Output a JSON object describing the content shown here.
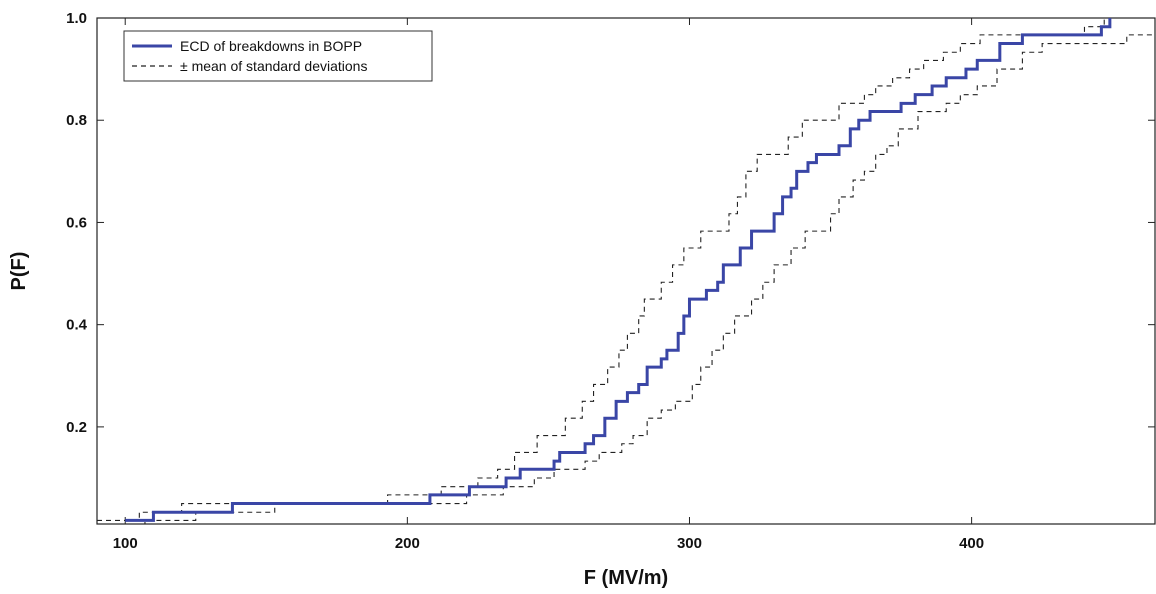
{
  "chart_data": {
    "type": "line",
    "xlabel": "F (MV/m)",
    "ylabel": "P(F)",
    "xlim": [
      90,
      465
    ],
    "ylim": [
      0.01,
      1.0
    ],
    "x_ticks": [
      100,
      200,
      300,
      400
    ],
    "y_ticks": [
      0.2,
      0.4,
      0.6,
      0.8,
      1.0
    ],
    "x_tick_labels": [
      "100",
      "200",
      "300",
      "400"
    ],
    "y_tick_labels": [
      "0.2",
      "0.4",
      "0.6",
      "0.8",
      "1.0"
    ],
    "grid": false,
    "legend_position": "top-left",
    "series": [
      {
        "name": "ECD of breakdowns in BOPP",
        "color": "#3a46a6",
        "style": "solid",
        "step": [
          [
            100,
            0.017
          ],
          [
            110,
            0.017
          ],
          [
            110,
            0.033
          ],
          [
            138,
            0.033
          ],
          [
            138,
            0.05
          ],
          [
            208,
            0.05
          ],
          [
            208,
            0.067
          ],
          [
            222,
            0.067
          ],
          [
            222,
            0.083
          ],
          [
            235,
            0.083
          ],
          [
            235,
            0.1
          ],
          [
            240,
            0.1
          ],
          [
            240,
            0.117
          ],
          [
            252,
            0.117
          ],
          [
            252,
            0.133
          ],
          [
            254,
            0.133
          ],
          [
            254,
            0.15
          ],
          [
            263,
            0.15
          ],
          [
            263,
            0.167
          ],
          [
            266,
            0.167
          ],
          [
            266,
            0.183
          ],
          [
            270,
            0.183
          ],
          [
            270,
            0.217
          ],
          [
            274,
            0.217
          ],
          [
            274,
            0.25
          ],
          [
            278,
            0.25
          ],
          [
            278,
            0.267
          ],
          [
            282,
            0.267
          ],
          [
            282,
            0.283
          ],
          [
            285,
            0.283
          ],
          [
            285,
            0.317
          ],
          [
            290,
            0.317
          ],
          [
            290,
            0.333
          ],
          [
            292,
            0.333
          ],
          [
            292,
            0.35
          ],
          [
            296,
            0.35
          ],
          [
            296,
            0.383
          ],
          [
            298,
            0.383
          ],
          [
            298,
            0.417
          ],
          [
            300,
            0.417
          ],
          [
            300,
            0.45
          ],
          [
            306,
            0.45
          ],
          [
            306,
            0.467
          ],
          [
            310,
            0.467
          ],
          [
            310,
            0.483
          ],
          [
            312,
            0.483
          ],
          [
            312,
            0.517
          ],
          [
            318,
            0.517
          ],
          [
            318,
            0.55
          ],
          [
            322,
            0.55
          ],
          [
            322,
            0.583
          ],
          [
            330,
            0.583
          ],
          [
            330,
            0.617
          ],
          [
            333,
            0.617
          ],
          [
            333,
            0.65
          ],
          [
            336,
            0.65
          ],
          [
            336,
            0.667
          ],
          [
            338,
            0.667
          ],
          [
            338,
            0.7
          ],
          [
            342,
            0.7
          ],
          [
            342,
            0.717
          ],
          [
            345,
            0.717
          ],
          [
            345,
            0.733
          ],
          [
            353,
            0.733
          ],
          [
            353,
            0.75
          ],
          [
            357,
            0.75
          ],
          [
            357,
            0.783
          ],
          [
            360,
            0.783
          ],
          [
            360,
            0.8
          ],
          [
            364,
            0.8
          ],
          [
            364,
            0.817
          ],
          [
            375,
            0.817
          ],
          [
            375,
            0.833
          ],
          [
            380,
            0.833
          ],
          [
            380,
            0.85
          ],
          [
            386,
            0.85
          ],
          [
            386,
            0.867
          ],
          [
            391,
            0.867
          ],
          [
            391,
            0.883
          ],
          [
            398,
            0.883
          ],
          [
            398,
            0.9
          ],
          [
            402,
            0.9
          ],
          [
            402,
            0.917
          ],
          [
            410,
            0.917
          ],
          [
            410,
            0.95
          ],
          [
            418,
            0.95
          ],
          [
            418,
            0.967
          ],
          [
            446,
            0.967
          ],
          [
            446,
            0.983
          ],
          [
            449,
            0.983
          ],
          [
            449,
            1.0
          ]
        ]
      },
      {
        "name": "± mean of standard deviations",
        "color": "#222222",
        "style": "dashed",
        "step": [
          [
            90,
            0.017
          ],
          [
            105,
            0.017
          ],
          [
            105,
            0.033
          ],
          [
            120,
            0.033
          ],
          [
            120,
            0.05
          ],
          [
            193,
            0.05
          ],
          [
            193,
            0.067
          ],
          [
            212,
            0.067
          ],
          [
            212,
            0.083
          ],
          [
            225,
            0.083
          ],
          [
            225,
            0.1
          ],
          [
            232,
            0.1
          ],
          [
            232,
            0.117
          ],
          [
            238,
            0.117
          ],
          [
            238,
            0.15
          ],
          [
            246,
            0.15
          ],
          [
            246,
            0.183
          ],
          [
            256,
            0.183
          ],
          [
            256,
            0.217
          ],
          [
            262,
            0.217
          ],
          [
            262,
            0.25
          ],
          [
            266,
            0.25
          ],
          [
            266,
            0.283
          ],
          [
            271,
            0.283
          ],
          [
            271,
            0.317
          ],
          [
            275,
            0.317
          ],
          [
            275,
            0.35
          ],
          [
            278,
            0.35
          ],
          [
            278,
            0.383
          ],
          [
            282,
            0.383
          ],
          [
            282,
            0.417
          ],
          [
            284,
            0.417
          ],
          [
            284,
            0.45
          ],
          [
            290,
            0.45
          ],
          [
            290,
            0.483
          ],
          [
            294,
            0.483
          ],
          [
            294,
            0.517
          ],
          [
            298,
            0.517
          ],
          [
            298,
            0.55
          ],
          [
            304,
            0.55
          ],
          [
            304,
            0.583
          ],
          [
            314,
            0.583
          ],
          [
            314,
            0.617
          ],
          [
            317,
            0.617
          ],
          [
            317,
            0.65
          ],
          [
            320,
            0.65
          ],
          [
            320,
            0.7
          ],
          [
            324,
            0.7
          ],
          [
            324,
            0.733
          ],
          [
            335,
            0.733
          ],
          [
            335,
            0.767
          ],
          [
            340,
            0.767
          ],
          [
            340,
            0.8
          ],
          [
            353,
            0.8
          ],
          [
            353,
            0.833
          ],
          [
            362,
            0.833
          ],
          [
            362,
            0.85
          ],
          [
            366,
            0.85
          ],
          [
            366,
            0.867
          ],
          [
            372,
            0.867
          ],
          [
            372,
            0.883
          ],
          [
            378,
            0.883
          ],
          [
            378,
            0.9
          ],
          [
            383,
            0.9
          ],
          [
            383,
            0.917
          ],
          [
            390,
            0.917
          ],
          [
            390,
            0.933
          ],
          [
            396,
            0.933
          ],
          [
            396,
            0.95
          ],
          [
            403,
            0.95
          ],
          [
            403,
            0.967
          ],
          [
            440,
            0.967
          ],
          [
            440,
            0.983
          ],
          [
            447,
            0.983
          ],
          [
            447,
            1.0
          ]
        ],
        "step_lower": [
          [
            90,
            0.01
          ],
          [
            107,
            0.01
          ],
          [
            107,
            0.017
          ],
          [
            125,
            0.017
          ],
          [
            125,
            0.033
          ],
          [
            153,
            0.033
          ],
          [
            153,
            0.05
          ],
          [
            221,
            0.05
          ],
          [
            221,
            0.067
          ],
          [
            234,
            0.067
          ],
          [
            234,
            0.083
          ],
          [
            245,
            0.083
          ],
          [
            245,
            0.1
          ],
          [
            252,
            0.1
          ],
          [
            252,
            0.117
          ],
          [
            263,
            0.117
          ],
          [
            263,
            0.133
          ],
          [
            268,
            0.133
          ],
          [
            268,
            0.15
          ],
          [
            276,
            0.15
          ],
          [
            276,
            0.167
          ],
          [
            280,
            0.167
          ],
          [
            280,
            0.183
          ],
          [
            285,
            0.183
          ],
          [
            285,
            0.217
          ],
          [
            290,
            0.217
          ],
          [
            290,
            0.233
          ],
          [
            295,
            0.233
          ],
          [
            295,
            0.25
          ],
          [
            301,
            0.25
          ],
          [
            301,
            0.283
          ],
          [
            304,
            0.283
          ],
          [
            304,
            0.317
          ],
          [
            308,
            0.317
          ],
          [
            308,
            0.35
          ],
          [
            312,
            0.35
          ],
          [
            312,
            0.383
          ],
          [
            316,
            0.383
          ],
          [
            316,
            0.417
          ],
          [
            322,
            0.417
          ],
          [
            322,
            0.45
          ],
          [
            326,
            0.45
          ],
          [
            326,
            0.483
          ],
          [
            330,
            0.483
          ],
          [
            330,
            0.517
          ],
          [
            336,
            0.517
          ],
          [
            336,
            0.55
          ],
          [
            341,
            0.55
          ],
          [
            341,
            0.583
          ],
          [
            350,
            0.583
          ],
          [
            350,
            0.617
          ],
          [
            353,
            0.617
          ],
          [
            353,
            0.65
          ],
          [
            358,
            0.65
          ],
          [
            358,
            0.683
          ],
          [
            362,
            0.683
          ],
          [
            362,
            0.7
          ],
          [
            366,
            0.7
          ],
          [
            366,
            0.733
          ],
          [
            370,
            0.733
          ],
          [
            370,
            0.75
          ],
          [
            374,
            0.75
          ],
          [
            374,
            0.783
          ],
          [
            381,
            0.783
          ],
          [
            381,
            0.817
          ],
          [
            391,
            0.817
          ],
          [
            391,
            0.833
          ],
          [
            396,
            0.833
          ],
          [
            396,
            0.85
          ],
          [
            402,
            0.85
          ],
          [
            402,
            0.867
          ],
          [
            409,
            0.867
          ],
          [
            409,
            0.9
          ],
          [
            418,
            0.9
          ],
          [
            418,
            0.933
          ],
          [
            425,
            0.933
          ],
          [
            425,
            0.95
          ],
          [
            455,
            0.95
          ],
          [
            455,
            0.967
          ],
          [
            465,
            0.967
          ]
        ]
      }
    ]
  }
}
